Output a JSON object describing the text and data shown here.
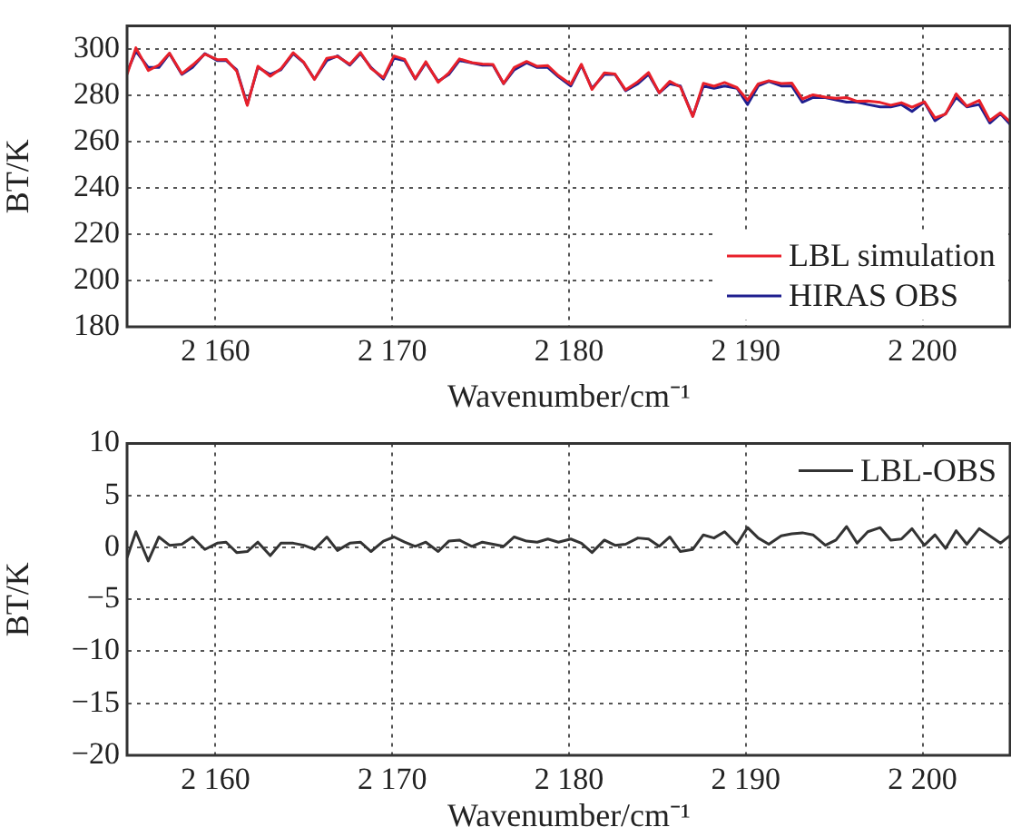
{
  "chart_data": [
    {
      "type": "line",
      "xlabel": "Wavenumber/cm⁻¹",
      "ylabel": "BT/K",
      "x": [
        2155,
        2155.5,
        2156.2,
        2156.8,
        2157.4,
        2158.1,
        2158.7,
        2159.4,
        2160.1,
        2160.6,
        2161.2,
        2161.8,
        2162.4,
        2163.1,
        2163.7,
        2164.4,
        2165,
        2165.6,
        2166.3,
        2166.9,
        2167.6,
        2168.2,
        2168.8,
        2169.5,
        2170.1,
        2170.7,
        2171.3,
        2171.9,
        2172.6,
        2173.2,
        2173.8,
        2174.5,
        2175.1,
        2175.7,
        2176.3,
        2176.9,
        2177.6,
        2178.2,
        2178.8,
        2179.4,
        2180.1,
        2180.7,
        2181.3,
        2182,
        2182.6,
        2183.2,
        2183.9,
        2184.5,
        2185.1,
        2185.7,
        2186.3,
        2187,
        2187.6,
        2188.2,
        2188.8,
        2189.5,
        2190.1,
        2190.7,
        2191.3,
        2192,
        2192.6,
        2193.2,
        2193.8,
        2194.5,
        2195.1,
        2195.7,
        2196.3,
        2196.9,
        2197.6,
        2198.2,
        2198.8,
        2199.4,
        2200.1,
        2200.7,
        2201.3,
        2201.9,
        2202.5,
        2203.2,
        2203.8,
        2204.4,
        2205
      ],
      "series": [
        {
          "name": "LBL simulation",
          "color": "#e8202a",
          "values": [
            289,
            300.5,
            290.7,
            293,
            298.2,
            289.3,
            293,
            297.8,
            295.4,
            295.5,
            290.5,
            275.6,
            292.5,
            288.2,
            291.4,
            298.4,
            294.2,
            286.8,
            296,
            296.7,
            293.4,
            298.5,
            291.6,
            287.6,
            297,
            295.5,
            287.1,
            294.5,
            285.6,
            289.6,
            295.7,
            294.1,
            293.5,
            293.3,
            285.1,
            292,
            294.6,
            292.5,
            292.8,
            288.5,
            284.8,
            293.4,
            282.5,
            289.7,
            289.2,
            282.3,
            285.9,
            289.8,
            281.1,
            286,
            283.6,
            270.8,
            285.2,
            283.9,
            285.5,
            283.3,
            277.9,
            284.9,
            286.3,
            285.1,
            285.3,
            278.4,
            280.2,
            279.2,
            278.7,
            279,
            277.4,
            277.5,
            276.9,
            275.7,
            276.8,
            274.8,
            277.2,
            270.2,
            271.9,
            280.6,
            275.3,
            277.8,
            269.1,
            272.4,
            268.2
          ]
        },
        {
          "name": "HIRAS OBS",
          "color": "#1f1f8f",
          "values": [
            290,
            299,
            292,
            292,
            298,
            289,
            292,
            298,
            295,
            295,
            291,
            276,
            292,
            289,
            291,
            298,
            294,
            287,
            295,
            297,
            293,
            298,
            292,
            287,
            296,
            295,
            287,
            294,
            286,
            289,
            295,
            294,
            293,
            293,
            285,
            291,
            294,
            292,
            292,
            288,
            284,
            293,
            283,
            289,
            289,
            282,
            285,
            289,
            281,
            285,
            284,
            271,
            284,
            283,
            284,
            283,
            276,
            284,
            286,
            284,
            284,
            277,
            279,
            279,
            278,
            277,
            277,
            276,
            275,
            275,
            276,
            273,
            277,
            269,
            272,
            279,
            275,
            276,
            268,
            272,
            267
          ]
        }
      ],
      "xlim": [
        2155,
        2205
      ],
      "xticks": [
        {
          "value": 2160,
          "label": "2 160"
        },
        {
          "value": 2170,
          "label": "2 170"
        },
        {
          "value": 2180,
          "label": "2 180"
        },
        {
          "value": 2190,
          "label": "2 190"
        },
        {
          "value": 2200,
          "label": "2 200"
        }
      ],
      "ylim": [
        180,
        310
      ],
      "yticks": [
        180,
        200,
        220,
        240,
        260,
        280,
        300
      ],
      "grid": true,
      "legend": "bottom right",
      "marker": "none",
      "line_style": "solid"
    },
    {
      "type": "line",
      "xlabel": "Wavenumber/cm⁻¹",
      "ylabel": "BT/K",
      "x": [
        2155,
        2155.5,
        2156.2,
        2156.8,
        2157.4,
        2158.1,
        2158.7,
        2159.4,
        2160.1,
        2160.6,
        2161.2,
        2161.8,
        2162.4,
        2163.1,
        2163.7,
        2164.4,
        2165,
        2165.6,
        2166.3,
        2166.9,
        2167.6,
        2168.2,
        2168.8,
        2169.5,
        2170.1,
        2170.7,
        2171.3,
        2171.9,
        2172.6,
        2173.2,
        2173.8,
        2174.5,
        2175.1,
        2175.7,
        2176.3,
        2176.9,
        2177.6,
        2178.2,
        2178.8,
        2179.4,
        2180.1,
        2180.7,
        2181.3,
        2182,
        2182.6,
        2183.2,
        2183.9,
        2184.5,
        2185.1,
        2185.7,
        2186.3,
        2187,
        2187.6,
        2188.2,
        2188.8,
        2189.5,
        2190.1,
        2190.7,
        2191.3,
        2192,
        2192.6,
        2193.2,
        2193.8,
        2194.5,
        2195.1,
        2195.7,
        2196.3,
        2196.9,
        2197.6,
        2198.2,
        2198.8,
        2199.4,
        2200.1,
        2200.7,
        2201.3,
        2201.9,
        2202.5,
        2203.2,
        2203.8,
        2204.4,
        2205
      ],
      "series": [
        {
          "name": "LBL-OBS",
          "color": "#333333",
          "values": [
            -1,
            1.5,
            -1.3,
            1,
            0.2,
            0.3,
            1,
            -0.2,
            0.4,
            0.5,
            -0.5,
            -0.4,
            0.5,
            -0.8,
            0.4,
            0.4,
            0.2,
            -0.2,
            1,
            -0.3,
            0.4,
            0.5,
            -0.4,
            0.6,
            1,
            0.5,
            0.1,
            0.5,
            -0.4,
            0.6,
            0.7,
            0.1,
            0.5,
            0.3,
            0.1,
            1,
            0.6,
            0.5,
            0.8,
            0.5,
            0.8,
            0.4,
            -0.5,
            0.7,
            0.2,
            0.3,
            0.9,
            0.8,
            0.1,
            1,
            -0.4,
            -0.2,
            1.2,
            0.9,
            1.5,
            0.3,
            1.9,
            0.9,
            0.3,
            1.1,
            1.3,
            1.4,
            1.2,
            0.2,
            0.7,
            2,
            0.4,
            1.5,
            1.9,
            0.7,
            0.8,
            1.8,
            0.2,
            1.2,
            -0.1,
            1.6,
            0.3,
            1.8,
            1.1,
            0.4,
            1.2
          ]
        }
      ],
      "xlim": [
        2155,
        2205
      ],
      "xticks": [
        {
          "value": 2160,
          "label": "2 160"
        },
        {
          "value": 2170,
          "label": "2 170"
        },
        {
          "value": 2180,
          "label": "2 180"
        },
        {
          "value": 2190,
          "label": "2 190"
        },
        {
          "value": 2200,
          "label": "2 200"
        }
      ],
      "ylim": [
        -20,
        10
      ],
      "yticks": [
        -20,
        -15,
        -10,
        -5,
        0,
        5,
        10
      ],
      "grid": true,
      "legend": "top right",
      "marker": "none",
      "line_style": "solid"
    }
  ]
}
